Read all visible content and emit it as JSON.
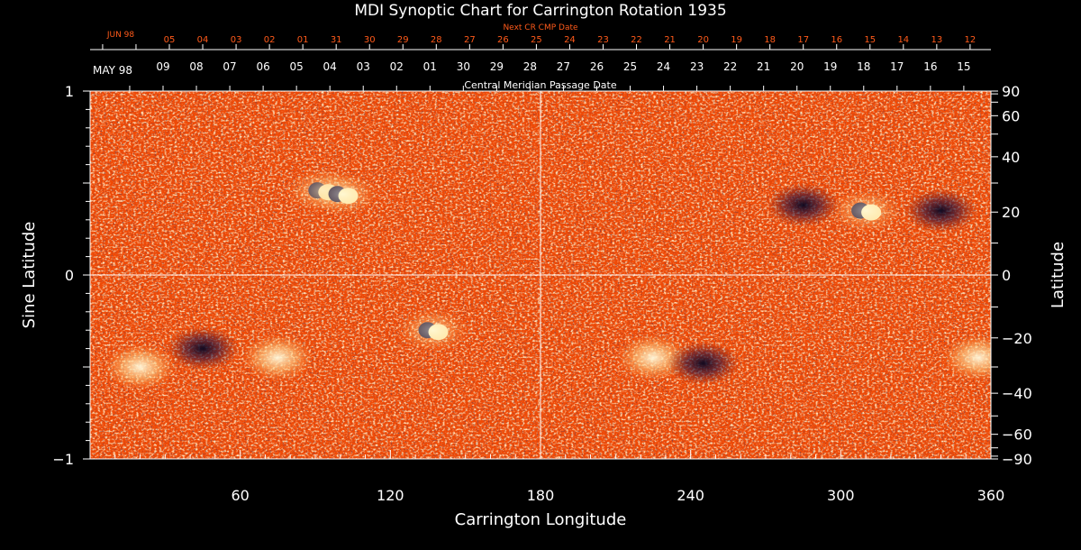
{
  "chart_data": {
    "type": "heatmap",
    "title": "MDI Synoptic Chart for Carrington Rotation 1935",
    "xlabel": "Carrington Longitude",
    "ylabel_left": "Sine Latitude",
    "ylabel_right": "Latitude",
    "xlim": [
      0,
      360
    ],
    "ylim": [
      -1,
      1
    ],
    "x_ticks": [
      "60",
      "120",
      "180",
      "240",
      "300",
      "360"
    ],
    "y_left_ticks": [
      "1",
      "0",
      "−1"
    ],
    "y_right_ticks": [
      "90",
      "60",
      "40",
      "20",
      "0",
      "−20",
      "−40",
      "−60",
      "−90"
    ],
    "cmp_axis_label": "Central Meridian Passage Date",
    "cmp_month_label": "MAY 98",
    "cmp_dates": [
      "09",
      "08",
      "07",
      "06",
      "05",
      "04",
      "03",
      "02",
      "01",
      "30",
      "29",
      "28",
      "27",
      "26",
      "25",
      "24",
      "23",
      "22",
      "21",
      "20",
      "19",
      "18",
      "17",
      "16",
      "15"
    ],
    "next_cmp_axis_label": "Next CR CMP Date",
    "next_cmp_month_label": "JUN 98",
    "next_cmp_dates": [
      "05",
      "04",
      "03",
      "02",
      "01",
      "31",
      "30",
      "29",
      "28",
      "27",
      "26",
      "25",
      "24",
      "23",
      "22",
      "21",
      "20",
      "19",
      "18",
      "17",
      "16",
      "15",
      "14",
      "13",
      "12"
    ],
    "grid_lines": {
      "longitude": 180,
      "sine_latitude": 0
    },
    "background_color": "#f04a06",
    "positive_field_color": "#fff4c0",
    "negative_field_color": "#0a0a40",
    "active_regions": [
      {
        "lon": 93,
        "sinlat": 0.46,
        "kind": "bipole"
      },
      {
        "lon": 101,
        "sinlat": 0.44,
        "kind": "bipole"
      },
      {
        "lon": 137,
        "sinlat": -0.3,
        "kind": "bipole"
      },
      {
        "lon": 310,
        "sinlat": 0.35,
        "kind": "bipole"
      },
      {
        "lon": 45,
        "sinlat": -0.4,
        "kind": "negative-plage"
      },
      {
        "lon": 20,
        "sinlat": -0.5,
        "kind": "positive-plage"
      },
      {
        "lon": 75,
        "sinlat": -0.45,
        "kind": "positive-plage"
      },
      {
        "lon": 225,
        "sinlat": -0.45,
        "kind": "positive-plage"
      },
      {
        "lon": 245,
        "sinlat": -0.48,
        "kind": "negative-plage"
      },
      {
        "lon": 285,
        "sinlat": 0.38,
        "kind": "negative-plage"
      },
      {
        "lon": 340,
        "sinlat": 0.35,
        "kind": "negative-plage"
      },
      {
        "lon": 355,
        "sinlat": -0.45,
        "kind": "positive-plage"
      }
    ]
  }
}
